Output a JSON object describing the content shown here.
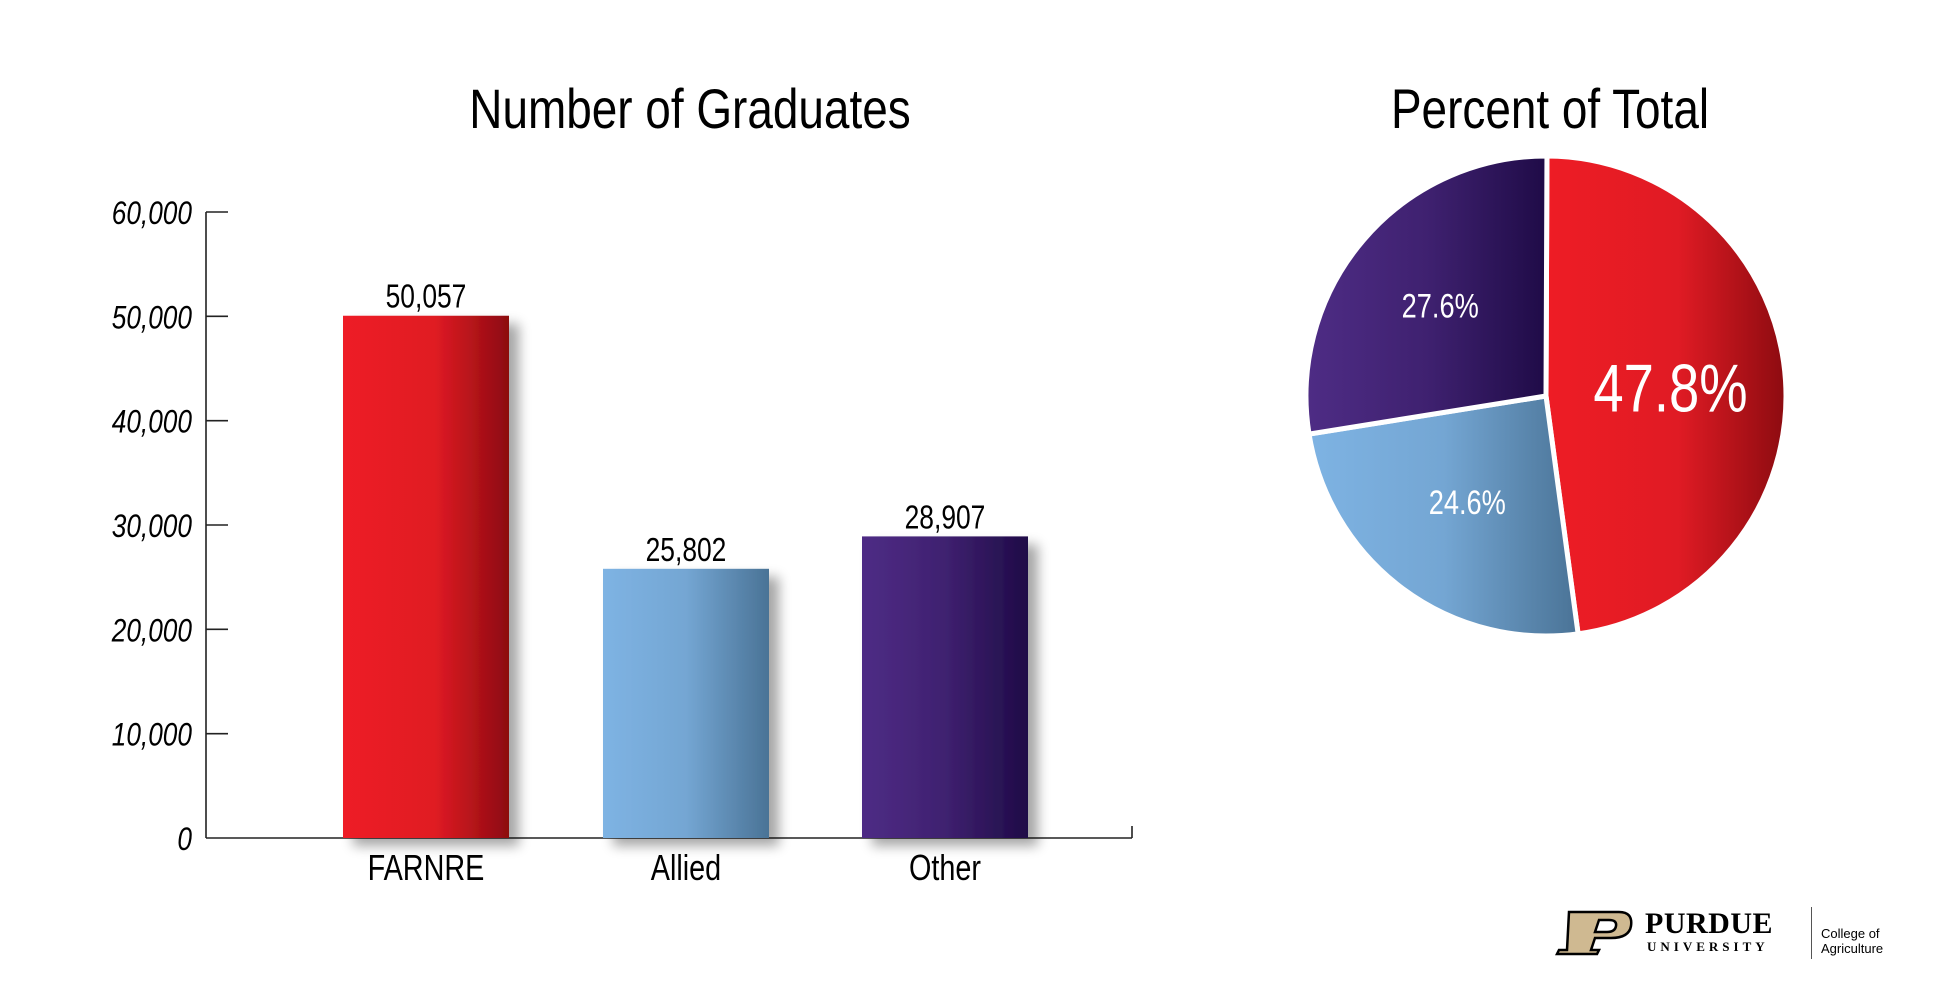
{
  "chart_data": [
    {
      "type": "bar",
      "title": "Number of Graduates",
      "categories": [
        "FARNRE",
        "Allied",
        "Other"
      ],
      "values": [
        50057,
        25802,
        28907
      ],
      "value_labels": [
        "50,057",
        "25,802",
        "28,907"
      ],
      "ylim": [
        0,
        60000
      ],
      "yticks": [
        0,
        10000,
        20000,
        30000,
        40000,
        50000,
        60000
      ],
      "ytick_labels": [
        "0",
        "10,000",
        "20,000",
        "30,000",
        "40,000",
        "50,000",
        "60,000"
      ],
      "xlabel": "",
      "ylabel": "",
      "grid": false,
      "colors": {
        "FARNRE": [
          "#ee1c25",
          "#8c0b10"
        ],
        "Allied": [
          "#7eb3e3",
          "#4a7396"
        ],
        "Other": [
          "#4e2c85",
          "#1f0b47"
        ]
      }
    },
    {
      "type": "pie",
      "title": "Percent of Total",
      "categories": [
        "FARNRE",
        "Allied",
        "Other"
      ],
      "values": [
        47.8,
        24.6,
        27.6
      ],
      "labels": [
        "47.8%",
        "24.6%",
        "27.6%"
      ],
      "colors": {
        "FARNRE": [
          "#ee1c25",
          "#8c0b10"
        ],
        "Allied": [
          "#7eb3e3",
          "#4a7396"
        ],
        "Other": [
          "#4e2c85",
          "#1f0b47"
        ]
      }
    }
  ],
  "logo": {
    "name": "PURDUE",
    "sub": "UNIVERSITY",
    "college": "College of Agriculture",
    "colors": {
      "gold": "#cfb991",
      "black": "#000000"
    }
  }
}
